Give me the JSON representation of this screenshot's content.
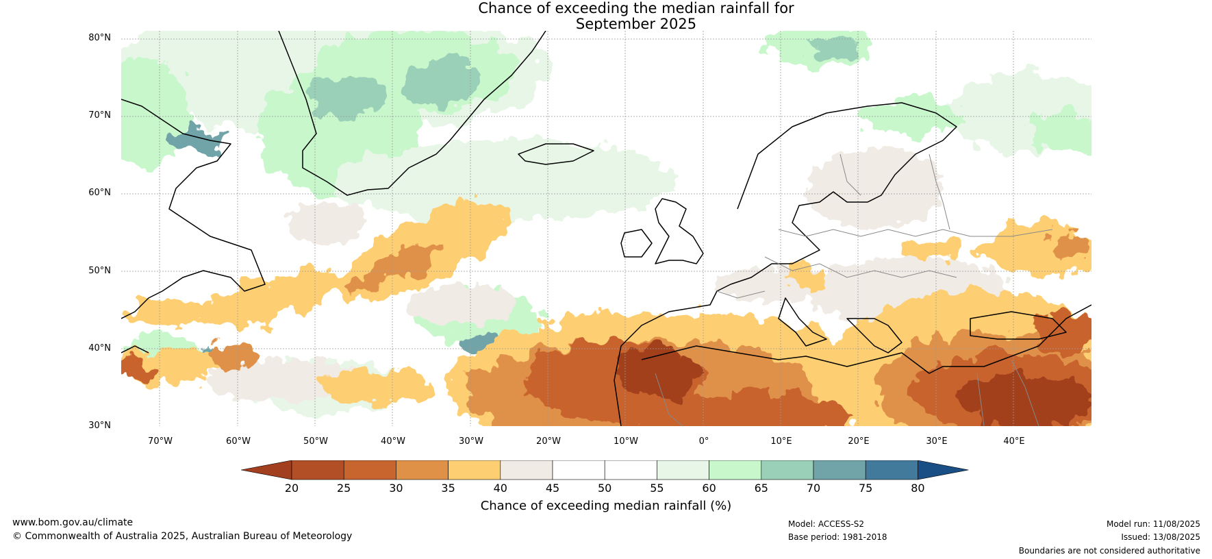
{
  "title": {
    "line1": "Chance of exceeding the median rainfall for",
    "line2": "September 2025"
  },
  "map": {
    "region": "North Atlantic and Europe",
    "lat_ticks": [
      "30°N",
      "40°N",
      "50°N",
      "60°N",
      "70°N",
      "80°N"
    ],
    "lon_ticks": [
      "70°W",
      "60°W",
      "50°W",
      "40°W",
      "30°W",
      "20°W",
      "10°W",
      "0°",
      "10°E",
      "20°E",
      "30°E",
      "40°E"
    ],
    "lat_range": [
      30,
      81
    ],
    "lon_range": [
      -75,
      50
    ]
  },
  "colorbar": {
    "label": "Chance of exceeding median rainfall (%)",
    "ticks": [
      "20",
      "25",
      "30",
      "35",
      "40",
      "45",
      "50",
      "55",
      "60",
      "65",
      "70",
      "75",
      "80"
    ],
    "colors": [
      "#a23f1f",
      "#b34f27",
      "#c8642d",
      "#e09148",
      "#fdcf72",
      "#f1ebe6",
      "#ffffff",
      "#ffffff",
      "#e8f6e8",
      "#c8f7cc",
      "#9bd0b8",
      "#70a4a8",
      "#417a9a",
      "#1a4f86"
    ]
  },
  "footer": {
    "url": "www.bom.gov.au/climate",
    "copyright": "© Commonwealth of Australia 2025, Australian Bureau of Meteorology",
    "model": "Model: ACCESS-S2",
    "base_period": "Base period: 1981-2018",
    "model_run": "Model run: 11/08/2025",
    "issued": "Issued: 13/08/2025",
    "disclaimer": "Boundaries are not considered authoritative"
  }
}
